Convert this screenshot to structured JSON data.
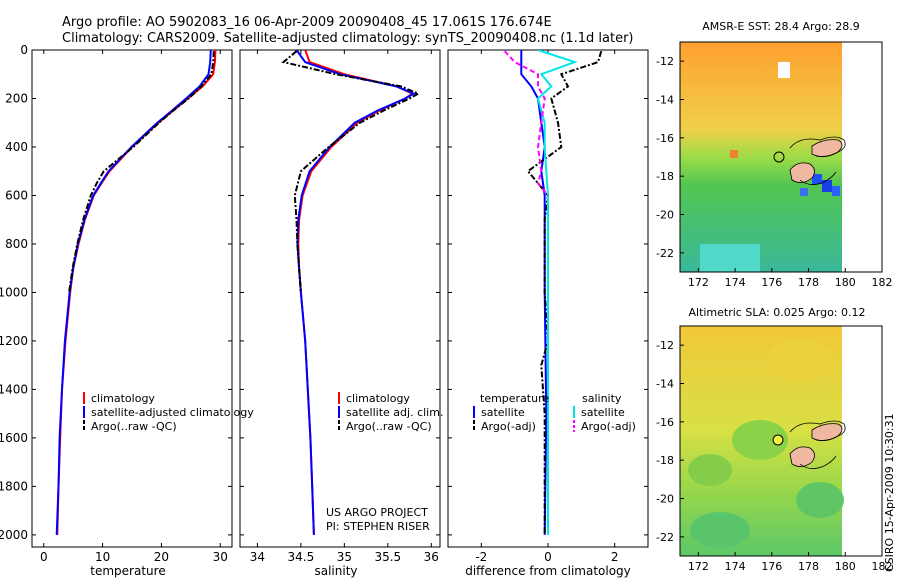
{
  "header": {
    "line1": "Argo profile: AO 5902083_16 06-Apr-2009 20090408_45 17.061S 176.674E",
    "line2": "Climatology: CARS2009. Satellite-adjusted climatology: synTS_20090408.nc (1.1d later)"
  },
  "colors": {
    "climatology": "#ff0000",
    "satellite": "#0000ff",
    "argo": "#000000",
    "sat_diff": "#00e5e5",
    "argo_diff": "#ff00ff"
  },
  "chart_data": [
    {
      "type": "line",
      "name": "temperature-profile",
      "xlabel": "temperature",
      "ylabel": "",
      "xlim": [
        -2,
        32
      ],
      "ylim": [
        0,
        2050
      ],
      "yreverse": true,
      "xticks": [
        "0",
        "10",
        "20",
        "30"
      ],
      "xtick_values": [
        0,
        10,
        20,
        30
      ],
      "yticks": [
        "0",
        "200",
        "400",
        "600",
        "800",
        "1000",
        "1200",
        "1400",
        "1600",
        "1800",
        "2000"
      ],
      "ytick_values": [
        0,
        200,
        400,
        600,
        800,
        1000,
        1200,
        1400,
        1600,
        1800,
        2000
      ],
      "legend": [
        "climatology",
        "satellite-adjusted climatology",
        "Argo(..raw -QC)"
      ],
      "legend_position": "lower-center",
      "series": [
        {
          "name": "climatology",
          "color": "#ff0000",
          "style": "solid",
          "depth": [
            0,
            50,
            100,
            150,
            200,
            250,
            300,
            400,
            500,
            550,
            600,
            700,
            800,
            900,
            1000,
            1200,
            1400,
            1600,
            1800,
            2000
          ],
          "values": [
            29.2,
            29.1,
            28.8,
            27.0,
            24.5,
            22.0,
            19.5,
            15.0,
            11.2,
            9.8,
            8.5,
            7.0,
            5.9,
            5.0,
            4.5,
            3.7,
            3.1,
            2.8,
            2.5,
            2.3
          ]
        },
        {
          "name": "satellite-adjusted climatology",
          "color": "#0000ff",
          "style": "solid",
          "depth": [
            0,
            50,
            100,
            150,
            200,
            250,
            300,
            400,
            500,
            550,
            600,
            700,
            800,
            900,
            1000,
            1200,
            1400,
            1600,
            1800,
            2000
          ],
          "values": [
            28.4,
            28.3,
            28.0,
            26.5,
            24.2,
            21.8,
            19.3,
            14.9,
            11.0,
            9.7,
            8.4,
            6.9,
            5.8,
            5.0,
            4.4,
            3.6,
            3.1,
            2.7,
            2.5,
            2.2
          ]
        },
        {
          "name": "Argo(..raw -QC)",
          "color": "#000000",
          "style": "dashdot",
          "depth": [
            5,
            50,
            100,
            150,
            200,
            250,
            300,
            400,
            500,
            550,
            600,
            700,
            800,
            900,
            1000
          ],
          "values": [
            28.9,
            28.8,
            28.5,
            26.8,
            24.6,
            22.0,
            19.6,
            15.2,
            10.2,
            9.0,
            8.0,
            6.7,
            5.7,
            4.9,
            4.3
          ]
        }
      ]
    },
    {
      "type": "line",
      "name": "salinity-profile",
      "xlabel": "salinity",
      "ylabel": "",
      "xlim": [
        33.8,
        36.1
      ],
      "ylim": [
        0,
        2050
      ],
      "yreverse": true,
      "xticks": [
        "34",
        "34.5",
        "35",
        "35.5",
        "36"
      ],
      "xtick_values": [
        34,
        34.5,
        35,
        35.5,
        36
      ],
      "legend": [
        "climatology",
        "satellite adj. clim.",
        "Argo(..raw -QC)"
      ],
      "legend_position": "lower-center",
      "annotation": [
        "US ARGO PROJECT",
        "PI: STEPHEN RISER"
      ],
      "series": [
        {
          "name": "climatology",
          "color": "#ff0000",
          "style": "solid",
          "depth": [
            0,
            50,
            100,
            150,
            180,
            200,
            250,
            300,
            400,
            500,
            600,
            700,
            800,
            900,
            1000,
            1200,
            1400,
            1600,
            1800,
            2000
          ],
          "values": [
            34.55,
            34.6,
            35.0,
            35.6,
            35.78,
            35.7,
            35.4,
            35.15,
            34.85,
            34.62,
            34.52,
            34.48,
            34.47,
            34.48,
            34.5,
            34.55,
            34.58,
            34.61,
            34.63,
            34.65
          ]
        },
        {
          "name": "satellite adj. clim.",
          "color": "#0000ff",
          "style": "solid",
          "depth": [
            0,
            50,
            100,
            150,
            180,
            200,
            250,
            300,
            400,
            500,
            600,
            700,
            800,
            900,
            1000,
            1200,
            1400,
            1600,
            1800,
            2000
          ],
          "values": [
            34.45,
            34.55,
            34.95,
            35.6,
            35.8,
            35.7,
            35.38,
            35.12,
            34.83,
            34.6,
            34.51,
            34.47,
            34.46,
            34.48,
            34.5,
            34.55,
            34.58,
            34.61,
            34.63,
            34.65
          ]
        },
        {
          "name": "Argo(..raw -QC)",
          "color": "#000000",
          "style": "dashdot",
          "depth": [
            5,
            50,
            100,
            150,
            180,
            200,
            250,
            300,
            400,
            500,
            600,
            700,
            800,
            900,
            1000
          ],
          "values": [
            34.45,
            34.3,
            34.9,
            35.65,
            35.85,
            35.75,
            35.45,
            35.18,
            34.82,
            34.5,
            34.43,
            34.45,
            34.46,
            34.48,
            34.5
          ]
        }
      ]
    },
    {
      "type": "line",
      "name": "difference-profile",
      "xlabel": "difference from climatology",
      "ylabel": "",
      "xlim": [
        -3,
        3
      ],
      "ylim": [
        0,
        2050
      ],
      "yreverse": true,
      "xticks": [
        "-2",
        "0",
        "2"
      ],
      "xtick_values": [
        -2,
        0,
        2
      ],
      "legend_left": {
        "title": "temperature",
        "items": [
          "satellite",
          "Argo(-adj)"
        ]
      },
      "legend_right": {
        "title": "salinity",
        "items": [
          "satellite",
          "Argo(-adj)"
        ]
      },
      "series": [
        {
          "name": "temperature satellite",
          "color": "#0000ff",
          "style": "solid",
          "depth": [
            0,
            50,
            100,
            150,
            200,
            300,
            400,
            500,
            600,
            800,
            1000,
            1500,
            2000
          ],
          "values": [
            -0.8,
            -0.8,
            -0.8,
            -0.5,
            -0.3,
            -0.2,
            -0.1,
            -0.2,
            -0.1,
            -0.1,
            -0.1,
            -0.05,
            -0.1
          ]
        },
        {
          "name": "temperature Argo(-adj)",
          "color": "#000000",
          "style": "dashdot",
          "depth": [
            5,
            50,
            100,
            150,
            200,
            300,
            400,
            500,
            550,
            600,
            700,
            800,
            1000,
            1200,
            1300,
            1500,
            2000
          ],
          "values": [
            1.6,
            1.5,
            0.4,
            0.6,
            0.1,
            0.3,
            0.4,
            -0.6,
            -0.3,
            0.0,
            -0.1,
            -0.1,
            -0.1,
            0.0,
            -0.2,
            -0.1,
            -0.1
          ]
        },
        {
          "name": "salinity satellite",
          "color": "#00e5e5",
          "style": "solid",
          "depth": [
            0,
            50,
            100,
            150,
            200,
            300,
            400,
            500,
            600,
            800,
            1000,
            1500,
            2000
          ],
          "values": [
            -0.3,
            0.8,
            -0.2,
            0.1,
            -0.3,
            -0.1,
            -0.1,
            -0.05,
            0.0,
            0.0,
            0.0,
            0.0,
            0.0
          ]
        },
        {
          "name": "salinity Argo(-adj)",
          "color": "#ff00ff",
          "style": "dashed",
          "depth": [
            5,
            50,
            100,
            150,
            200,
            300,
            400,
            500,
            550,
            600
          ],
          "values": [
            -1.3,
            -1.0,
            -0.3,
            -0.3,
            -0.1,
            -0.2,
            -0.3,
            -0.2,
            -0.3,
            0.0
          ]
        }
      ]
    }
  ],
  "maps": [
    {
      "name": "sst-map",
      "title": "AMSR-E SST: 28.4 Argo: 28.9",
      "yticks": [
        "-12",
        "-14",
        "-16",
        "-18",
        "-20",
        "-22"
      ],
      "xticks": [
        "172",
        "174",
        "176",
        "178",
        "180",
        "182"
      ],
      "lon_range": [
        171,
        182
      ],
      "lat_range": [
        -23,
        -11
      ]
    },
    {
      "name": "sla-map",
      "title": "Altimetric SLA: 0.025 Argo: 0.12",
      "yticks": [
        "-12",
        "-14",
        "-16",
        "-18",
        "-20",
        "-22"
      ],
      "xticks": [
        "172",
        "174",
        "176",
        "178",
        "180",
        "182"
      ],
      "lon_range": [
        171,
        182
      ],
      "lat_range": [
        -23,
        -11
      ]
    }
  ],
  "float_position": {
    "lon": 176.674,
    "lat": -17.061
  },
  "side_label": "CSIRO 15-Apr-2009 10:30:31"
}
